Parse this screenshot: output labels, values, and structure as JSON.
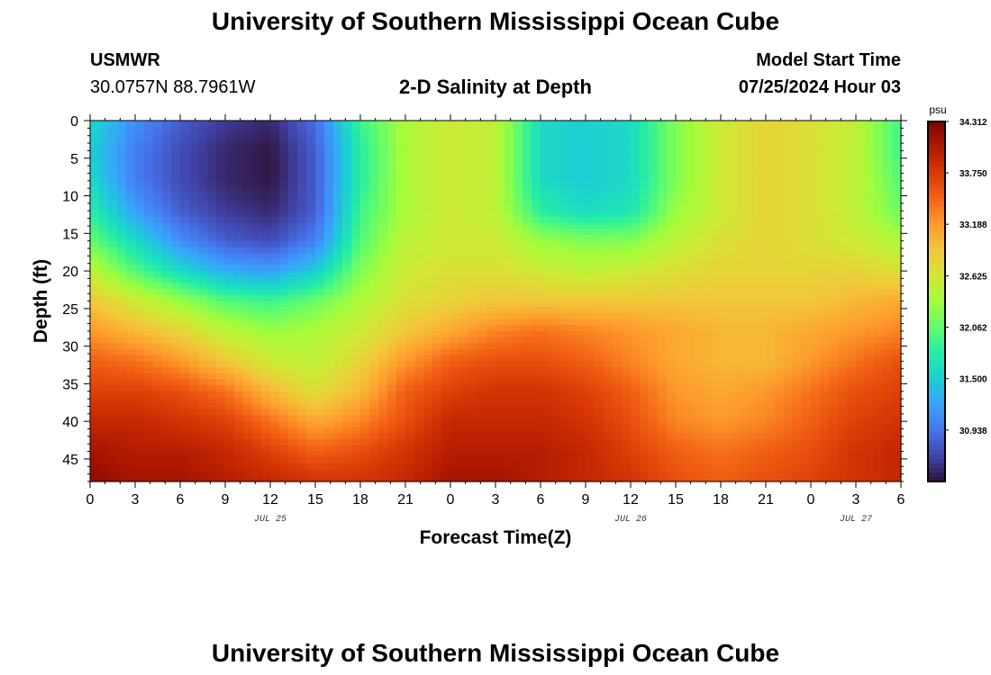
{
  "header": {
    "title": "University of Southern Mississippi Ocean Cube",
    "station": "USMWR",
    "coords": "30.0757N  88.7961W",
    "plot_title": "2-D Salinity at Depth",
    "model_start_label": "Model Start Time",
    "model_start_value": "07/25/2024 Hour 03"
  },
  "footer": {
    "title": "University of Southern Mississippi Ocean Cube"
  },
  "colorbar": {
    "unit": "psu",
    "min": 30.375,
    "max": 34.312,
    "ticks": [
      "34.312",
      "33.750",
      "33.188",
      "32.625",
      "32.062",
      "31.500",
      "30.938"
    ],
    "colors": [
      "#30123b",
      "#4145ab",
      "#4675ed",
      "#39a2fc",
      "#1bcfd4",
      "#24eca6",
      "#61fc6c",
      "#a4fc3b",
      "#d1e834",
      "#f3c63a",
      "#fe9b2d",
      "#f36315",
      "#d93806",
      "#b11901",
      "#7a0402"
    ]
  },
  "chart_data": {
    "type": "heatmap",
    "xlabel": "Forecast Time(Z)",
    "ylabel": "Depth (ft)",
    "x_tick_labels": [
      "0",
      "3",
      "6",
      "9",
      "12",
      "15",
      "18",
      "21",
      "0",
      "3",
      "6",
      "9",
      "12",
      "15",
      "18",
      "21",
      "0",
      "3",
      "6"
    ],
    "date_labels": [
      {
        "label": "JUL 25",
        "hour": 12
      },
      {
        "label": "JUL 26",
        "hour": 36
      },
      {
        "label": "JUL 27",
        "hour": 51
      }
    ],
    "y_tick_labels": [
      "0",
      "5",
      "10",
      "15",
      "20",
      "25",
      "30",
      "35",
      "40",
      "45"
    ],
    "xlim": [
      0,
      54
    ],
    "ylim": [
      0,
      48
    ],
    "y_inverted": true,
    "grid": false,
    "z_units": "psu",
    "z_range": [
      30.375,
      34.312
    ],
    "depths": [
      0,
      4,
      8,
      12,
      16,
      20,
      24,
      28,
      32,
      36,
      40,
      44,
      48
    ],
    "hours": [
      0,
      3,
      6,
      9,
      12,
      15,
      18,
      21,
      24,
      27,
      30,
      33,
      36,
      39,
      42,
      45,
      48,
      51,
      54
    ],
    "values": [
      [
        31.6,
        31.1,
        30.8,
        30.6,
        30.5,
        30.9,
        31.9,
        32.4,
        32.6,
        32.5,
        31.6,
        31.5,
        31.6,
        32.2,
        32.6,
        32.8,
        32.7,
        32.5,
        31.9
      ],
      [
        31.5,
        31.0,
        30.7,
        30.5,
        30.4,
        30.8,
        31.8,
        32.4,
        32.6,
        32.5,
        31.6,
        31.5,
        31.6,
        32.2,
        32.6,
        32.8,
        32.7,
        32.5,
        31.9
      ],
      [
        31.6,
        31.0,
        30.7,
        30.5,
        30.4,
        30.8,
        31.8,
        32.4,
        32.6,
        32.5,
        31.6,
        31.5,
        31.6,
        32.2,
        32.6,
        32.8,
        32.7,
        32.5,
        32.0
      ],
      [
        31.8,
        31.2,
        30.8,
        30.6,
        30.5,
        30.8,
        31.9,
        32.4,
        32.6,
        32.5,
        31.8,
        31.6,
        31.7,
        32.3,
        32.6,
        32.8,
        32.7,
        32.5,
        32.1
      ],
      [
        32.1,
        31.6,
        31.1,
        30.8,
        30.7,
        31.0,
        32.0,
        32.5,
        32.6,
        32.6,
        32.3,
        32.2,
        32.2,
        32.5,
        32.7,
        32.8,
        32.7,
        32.6,
        32.4
      ],
      [
        32.5,
        32.0,
        31.6,
        31.3,
        31.2,
        31.5,
        32.2,
        32.6,
        32.7,
        32.7,
        32.6,
        32.5,
        32.6,
        32.7,
        32.8,
        32.8,
        32.8,
        32.8,
        32.7
      ],
      [
        32.9,
        32.6,
        32.3,
        32.0,
        31.9,
        32.1,
        32.4,
        32.7,
        32.8,
        32.9,
        32.9,
        32.9,
        32.9,
        32.9,
        32.9,
        32.9,
        32.9,
        33.0,
        33.1
      ],
      [
        33.2,
        33.0,
        32.8,
        32.5,
        32.3,
        32.4,
        32.6,
        32.9,
        33.1,
        33.3,
        33.4,
        33.3,
        33.2,
        33.1,
        33.0,
        33.0,
        33.1,
        33.2,
        33.3
      ],
      [
        33.5,
        33.4,
        33.2,
        32.9,
        32.6,
        32.5,
        32.8,
        33.2,
        33.5,
        33.6,
        33.6,
        33.5,
        33.3,
        33.1,
        33.0,
        33.0,
        33.2,
        33.4,
        33.6
      ],
      [
        33.7,
        33.7,
        33.6,
        33.4,
        33.0,
        32.7,
        33.0,
        33.5,
        33.7,
        33.8,
        33.8,
        33.7,
        33.5,
        33.2,
        33.1,
        33.2,
        33.4,
        33.6,
        33.7
      ],
      [
        33.9,
        33.9,
        33.8,
        33.7,
        33.4,
        33.1,
        33.3,
        33.6,
        33.9,
        33.9,
        33.9,
        33.8,
        33.6,
        33.3,
        33.2,
        33.3,
        33.5,
        33.7,
        33.8
      ],
      [
        34.1,
        34.0,
        34.0,
        33.9,
        33.7,
        33.5,
        33.6,
        33.8,
        34.0,
        34.0,
        34.0,
        33.9,
        33.7,
        33.5,
        33.4,
        33.5,
        33.6,
        33.8,
        33.9
      ],
      [
        34.2,
        34.1,
        34.1,
        34.0,
        33.9,
        33.8,
        33.8,
        33.9,
        34.1,
        34.1,
        34.0,
        33.9,
        33.8,
        33.6,
        33.5,
        33.6,
        33.7,
        33.8,
        33.9
      ]
    ]
  }
}
